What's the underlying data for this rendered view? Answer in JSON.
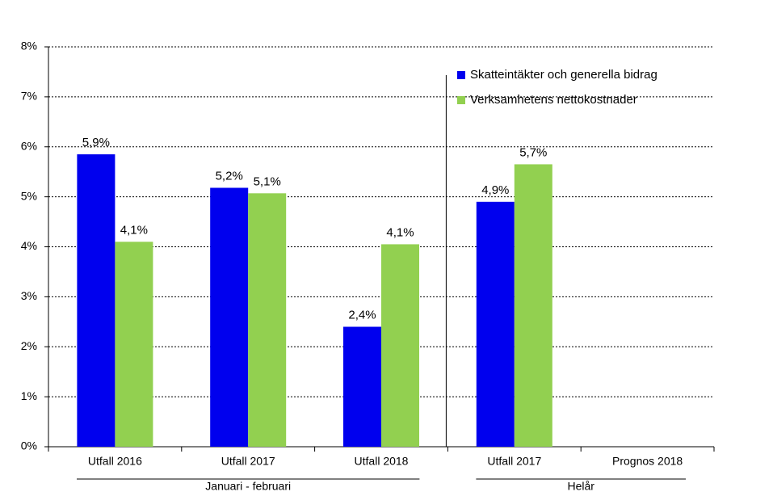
{
  "chart_data": {
    "type": "bar",
    "categories": [
      "Utfall 2016",
      "Utfall 2017",
      "Utfall 2018",
      "Utfall 2017",
      "Prognos 2018"
    ],
    "groups": [
      {
        "label": "Januari - februari",
        "categories": [
          "Utfall 2016",
          "Utfall 2017",
          "Utfall 2018"
        ]
      },
      {
        "label": "Helår",
        "categories": [
          "Utfall 2017",
          "Prognos 2018"
        ]
      }
    ],
    "series": [
      {
        "name": "Skatteintäkter och generella bidrag",
        "color": "#0000ee",
        "values": [
          5.85,
          5.18,
          2.4,
          4.9,
          null
        ],
        "value_labels": [
          "5,9%",
          "5,2%",
          "2,4%",
          "4,9%",
          null
        ]
      },
      {
        "name": "Verksamhetens nettokostnader",
        "color": "#92d050",
        "values": [
          4.1,
          5.07,
          4.05,
          5.65,
          null
        ],
        "value_labels": [
          "4,1%",
          "5,1%",
          "4,1%",
          "5,7%",
          null
        ]
      }
    ],
    "ylim": [
      0,
      8
    ],
    "yticks": [
      {
        "value": 0,
        "label": "0%"
      },
      {
        "value": 1,
        "label": "1%"
      },
      {
        "value": 2,
        "label": "2%"
      },
      {
        "value": 3,
        "label": "3%"
      },
      {
        "value": 4,
        "label": "4%"
      },
      {
        "value": 5,
        "label": "5%"
      },
      {
        "value": 6,
        "label": "6%"
      },
      {
        "value": 7,
        "label": "7%"
      },
      {
        "value": 8,
        "label": "8%"
      }
    ],
    "grid": true,
    "legend": "top-right"
  }
}
